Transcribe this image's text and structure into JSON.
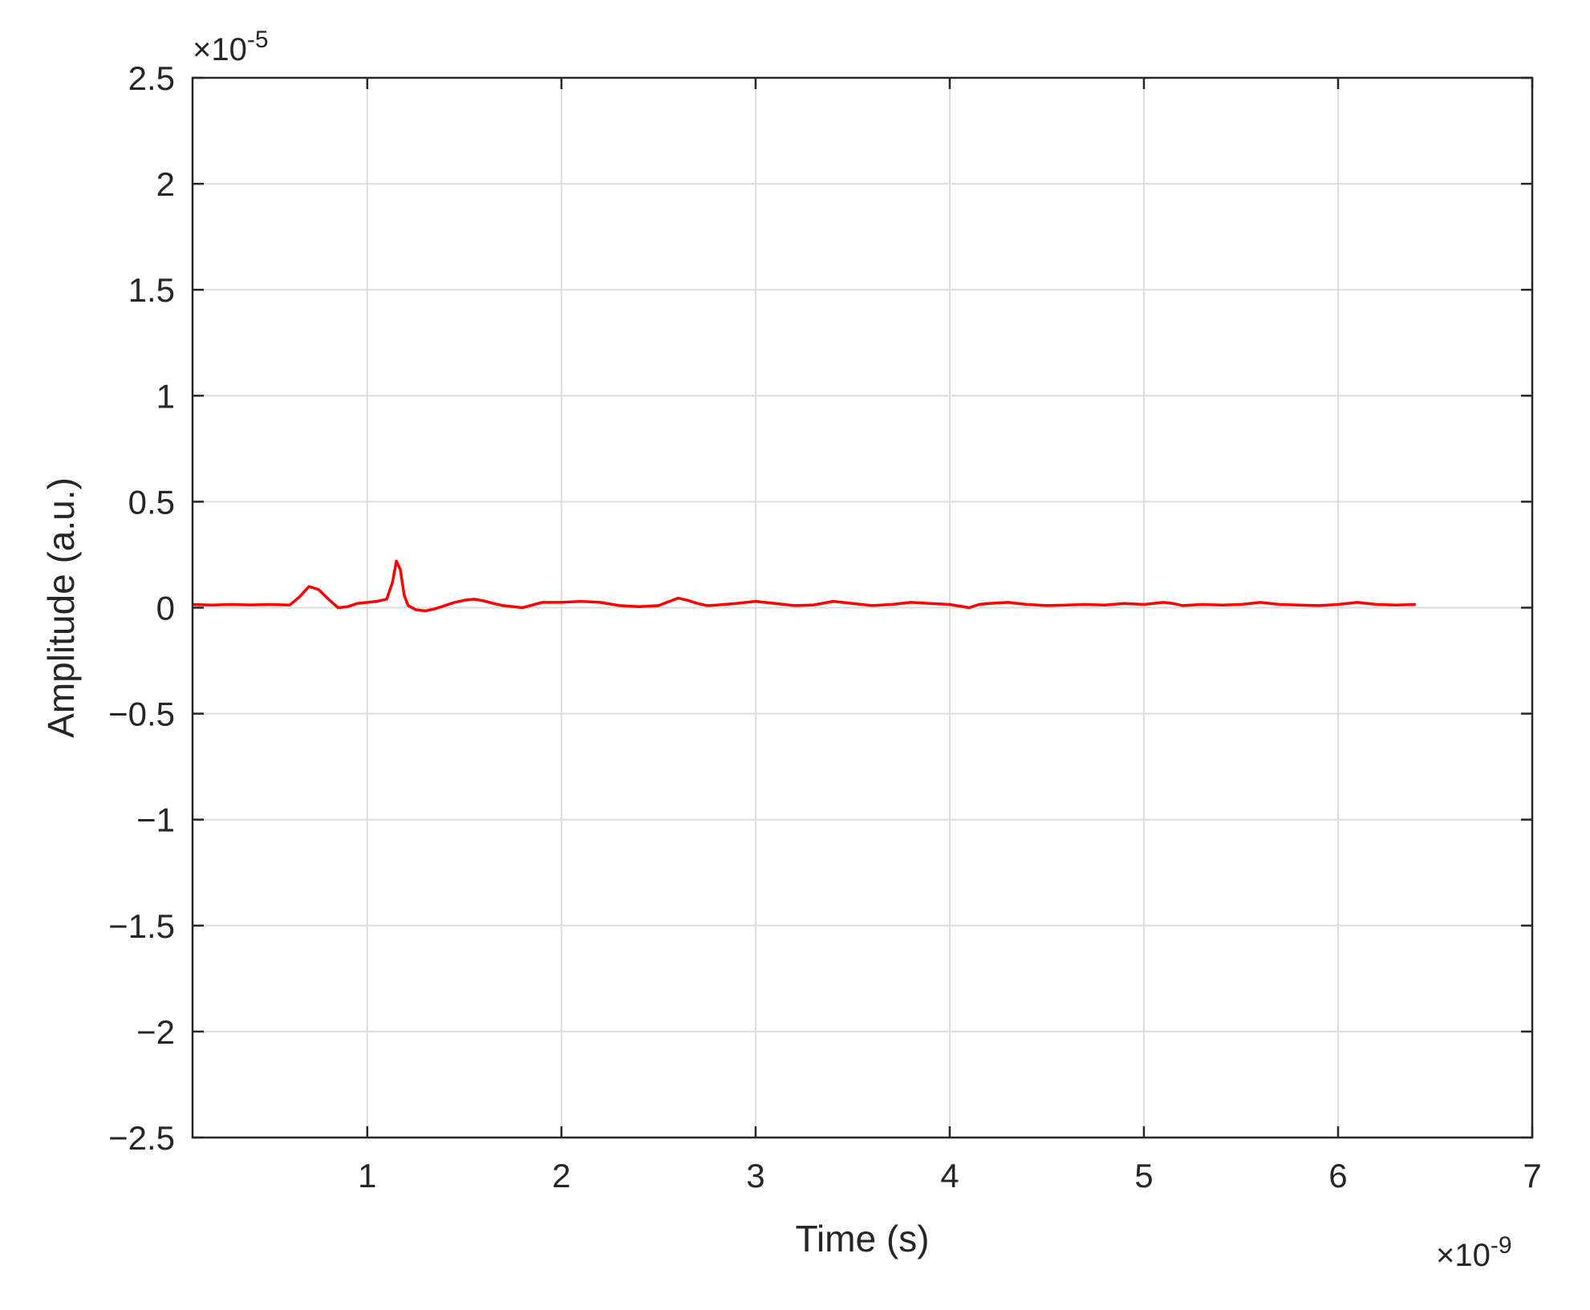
{
  "chart_data": {
    "type": "line",
    "title": "",
    "xlabel": "Time (s)",
    "ylabel": "Amplitude (a.u.)",
    "x_multiplier_label": [
      "×10",
      "-9"
    ],
    "y_multiplier_label": [
      "×10",
      "-5"
    ],
    "x_scale": 1e-09,
    "y_scale": 1e-05,
    "xlim": [
      0.1,
      7
    ],
    "ylim": [
      -2.5,
      2.5
    ],
    "x_ticks": [
      1,
      2,
      3,
      4,
      5,
      6,
      7
    ],
    "x_tick_labels": [
      "1",
      "2",
      "3",
      "4",
      "5",
      "6",
      "7"
    ],
    "y_ticks": [
      -2.5,
      -2,
      -1.5,
      -1,
      -0.5,
      0,
      0.5,
      1,
      1.5,
      2,
      2.5
    ],
    "y_tick_labels": [
      "−2.5",
      "−2",
      "−1.5",
      "−1",
      "−0.5",
      "0",
      "0.5",
      "1",
      "1.5",
      "2",
      "2.5"
    ],
    "grid": true,
    "series": [
      {
        "color": "#ff0000",
        "x": [
          0.1,
          0.2,
          0.3,
          0.4,
          0.5,
          0.6,
          0.65,
          0.7,
          0.75,
          0.8,
          0.85,
          0.9,
          0.95,
          1.0,
          1.05,
          1.1,
          1.13,
          1.15,
          1.17,
          1.19,
          1.21,
          1.25,
          1.3,
          1.35,
          1.4,
          1.45,
          1.5,
          1.55,
          1.6,
          1.65,
          1.7,
          1.8,
          1.9,
          2.0,
          2.1,
          2.2,
          2.3,
          2.4,
          2.5,
          2.6,
          2.65,
          2.7,
          2.75,
          2.8,
          2.9,
          3.0,
          3.1,
          3.2,
          3.3,
          3.4,
          3.5,
          3.6,
          3.7,
          3.8,
          3.9,
          4.0,
          4.1,
          4.15,
          4.2,
          4.3,
          4.4,
          4.5,
          4.6,
          4.7,
          4.8,
          4.9,
          5.0,
          5.1,
          5.15,
          5.2,
          5.3,
          5.4,
          5.5,
          5.6,
          5.65,
          5.7,
          5.8,
          5.9,
          6.0,
          6.1,
          6.15,
          6.2,
          6.3,
          6.4
        ],
        "y": [
          0.015,
          0.012,
          0.015,
          0.013,
          0.015,
          0.012,
          0.05,
          0.1,
          0.085,
          0.04,
          0.0,
          0.005,
          0.02,
          0.025,
          0.03,
          0.04,
          0.12,
          0.22,
          0.18,
          0.06,
          0.01,
          -0.01,
          -0.015,
          -0.005,
          0.01,
          0.025,
          0.035,
          0.04,
          0.032,
          0.02,
          0.01,
          0.0,
          0.025,
          0.025,
          0.03,
          0.025,
          0.01,
          0.005,
          0.01,
          0.045,
          0.035,
          0.02,
          0.01,
          0.012,
          0.02,
          0.03,
          0.02,
          0.01,
          0.013,
          0.03,
          0.02,
          0.01,
          0.015,
          0.025,
          0.02,
          0.015,
          0.0,
          0.015,
          0.02,
          0.025,
          0.015,
          0.01,
          0.012,
          0.015,
          0.012,
          0.02,
          0.015,
          0.025,
          0.02,
          0.01,
          0.015,
          0.012,
          0.015,
          0.025,
          0.02,
          0.015,
          0.012,
          0.01,
          0.015,
          0.025,
          0.02,
          0.015,
          0.012,
          0.015
        ]
      }
    ]
  }
}
